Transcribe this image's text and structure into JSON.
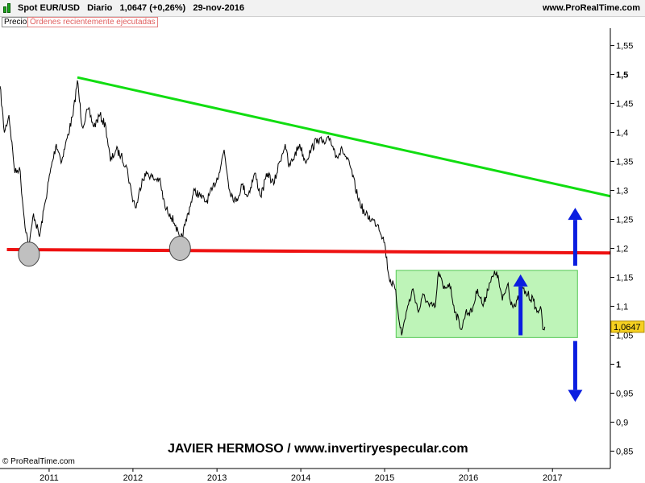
{
  "header": {
    "instrument": "Spot EUR/USD",
    "timeframe": "Diario",
    "last_value": "1,0647 (+0,26%)",
    "date": "29-nov-2016",
    "site": "www.ProRealTime.com"
  },
  "tabs": {
    "precio": "Precio",
    "ordenes": "Órdenes recientemente ejecutadas"
  },
  "footer": {
    "copyright": "© ProRealTime.com",
    "watermark": "JAVIER HERMOSO / www.invertiryespecular.com"
  },
  "colors": {
    "price_line": "#000000",
    "trend_line": "#11dd11",
    "support_line": "#ee1111",
    "range_fill": "#a8f0a0",
    "range_border": "#55c855",
    "arrow": "#0b1ee0",
    "circle_fill": "#c0c0c0",
    "price_tag": "#f5d020"
  },
  "chart_data": {
    "type": "line",
    "series": [
      {
        "points": [
          [
            "2010-06-01",
            1.48
          ],
          [
            "2010-06-20",
            1.4
          ],
          [
            "2010-07-10",
            1.43
          ],
          [
            "2010-08-05",
            1.33
          ],
          [
            "2010-08-25",
            1.34
          ],
          [
            "2010-09-15",
            1.25
          ],
          [
            "2010-10-05",
            1.2
          ],
          [
            "2010-10-25",
            1.26
          ],
          [
            "2010-11-20",
            1.22
          ],
          [
            "2010-12-15",
            1.28
          ],
          [
            "2011-01-05",
            1.33
          ],
          [
            "2011-02-01",
            1.38
          ],
          [
            "2011-02-25",
            1.35
          ],
          [
            "2011-03-20",
            1.39
          ],
          [
            "2011-04-15",
            1.43
          ],
          [
            "2011-05-04",
            1.49
          ],
          [
            "2011-05-25",
            1.41
          ],
          [
            "2011-06-20",
            1.44
          ],
          [
            "2011-07-15",
            1.41
          ],
          [
            "2011-08-10",
            1.43
          ],
          [
            "2011-09-05",
            1.41
          ],
          [
            "2011-09-25",
            1.35
          ],
          [
            "2011-10-20",
            1.37
          ],
          [
            "2011-11-10",
            1.36
          ],
          [
            "2011-12-05",
            1.34
          ],
          [
            "2011-12-28",
            1.29
          ],
          [
            "2012-01-15",
            1.27
          ],
          [
            "2012-02-10",
            1.32
          ],
          [
            "2012-03-05",
            1.33
          ],
          [
            "2012-03-30",
            1.32
          ],
          [
            "2012-04-25",
            1.32
          ],
          [
            "2012-05-20",
            1.27
          ],
          [
            "2012-06-10",
            1.26
          ],
          [
            "2012-07-05",
            1.24
          ],
          [
            "2012-07-24",
            1.21
          ],
          [
            "2012-08-15",
            1.24
          ],
          [
            "2012-09-10",
            1.28
          ],
          [
            "2012-09-25",
            1.3
          ],
          [
            "2012-10-20",
            1.29
          ],
          [
            "2012-11-15",
            1.28
          ],
          [
            "2012-12-10",
            1.3
          ],
          [
            "2013-01-10",
            1.33
          ],
          [
            "2013-02-01",
            1.37
          ],
          [
            "2013-02-25",
            1.3
          ],
          [
            "2013-03-25",
            1.28
          ],
          [
            "2013-04-20",
            1.31
          ],
          [
            "2013-05-15",
            1.29
          ],
          [
            "2013-06-15",
            1.33
          ],
          [
            "2013-07-10",
            1.29
          ],
          [
            "2013-08-10",
            1.33
          ],
          [
            "2013-09-05",
            1.31
          ],
          [
            "2013-10-01",
            1.35
          ],
          [
            "2013-10-25",
            1.38
          ],
          [
            "2013-11-10",
            1.34
          ],
          [
            "2013-12-05",
            1.36
          ],
          [
            "2013-12-27",
            1.38
          ],
          [
            "2014-01-20",
            1.35
          ],
          [
            "2014-02-15",
            1.37
          ],
          [
            "2014-03-15",
            1.39
          ],
          [
            "2014-04-15",
            1.38
          ],
          [
            "2014-05-08",
            1.39
          ],
          [
            "2014-06-05",
            1.36
          ],
          [
            "2014-07-01",
            1.37
          ],
          [
            "2014-08-05",
            1.34
          ],
          [
            "2014-09-05",
            1.29
          ],
          [
            "2014-10-05",
            1.26
          ],
          [
            "2014-11-05",
            1.25
          ],
          [
            "2014-12-05",
            1.24
          ],
          [
            "2015-01-01",
            1.21
          ],
          [
            "2015-01-20",
            1.15
          ],
          [
            "2015-02-15",
            1.13
          ],
          [
            "2015-03-16",
            1.05
          ],
          [
            "2015-04-05",
            1.09
          ],
          [
            "2015-05-05",
            1.13
          ],
          [
            "2015-05-28",
            1.09
          ],
          [
            "2015-06-20",
            1.12
          ],
          [
            "2015-07-15",
            1.1
          ],
          [
            "2015-08-10",
            1.1
          ],
          [
            "2015-08-24",
            1.16
          ],
          [
            "2015-09-15",
            1.13
          ],
          [
            "2015-10-10",
            1.14
          ],
          [
            "2015-11-05",
            1.09
          ],
          [
            "2015-12-03",
            1.06
          ],
          [
            "2015-12-20",
            1.09
          ],
          [
            "2016-01-15",
            1.09
          ],
          [
            "2016-02-10",
            1.13
          ],
          [
            "2016-03-05",
            1.1
          ],
          [
            "2016-04-01",
            1.14
          ],
          [
            "2016-05-03",
            1.16
          ],
          [
            "2016-05-28",
            1.11
          ],
          [
            "2016-06-22",
            1.14
          ],
          [
            "2016-07-01",
            1.11
          ],
          [
            "2016-07-25",
            1.1
          ],
          [
            "2016-08-20",
            1.13
          ],
          [
            "2016-09-15",
            1.12
          ],
          [
            "2016-10-10",
            1.11
          ],
          [
            "2016-10-25",
            1.09
          ],
          [
            "2016-11-10",
            1.1
          ],
          [
            "2016-11-20",
            1.06
          ],
          [
            "2016-11-29",
            1.0647
          ]
        ]
      }
    ],
    "last_value": "1,0647",
    "y_ticks": [
      "1,55",
      "1,5",
      "1,45",
      "1,4",
      "1,35",
      "1,3",
      "1,25",
      "1,2",
      "1,15",
      "1,1",
      "1,05",
      "1",
      "0,95",
      "0,9",
      "0,85"
    ],
    "x_ticks": [
      "2011",
      "2012",
      "2013",
      "2014",
      "2015",
      "2016",
      "2017"
    ],
    "ylim": [
      0.82,
      1.58
    ],
    "xlim": [
      "2010-06-01",
      "2017-09-10"
    ],
    "grid": false,
    "annotations": {
      "trend_line": [
        [
          "2011-05-04",
          1.495
        ],
        [
          "2017-09-10",
          1.29
        ]
      ],
      "support_line": [
        [
          "2010-07-01",
          1.198
        ],
        [
          "2017-09-10",
          1.192
        ]
      ],
      "range_box": {
        "x": [
          "2015-02-20",
          "2017-04-20"
        ],
        "y": [
          1.046,
          1.162
        ]
      },
      "circles": [
        {
          "x": "2010-10-05",
          "y": 1.19
        },
        {
          "x": "2012-07-24",
          "y": 1.2
        }
      ],
      "arrows": [
        {
          "x": "2016-08-15",
          "from": 1.05,
          "to": 1.155
        },
        {
          "x": "2017-04-10",
          "from": 1.17,
          "to": 1.27
        },
        {
          "x": "2017-04-10",
          "from": 1.04,
          "to": 0.935
        }
      ]
    }
  }
}
